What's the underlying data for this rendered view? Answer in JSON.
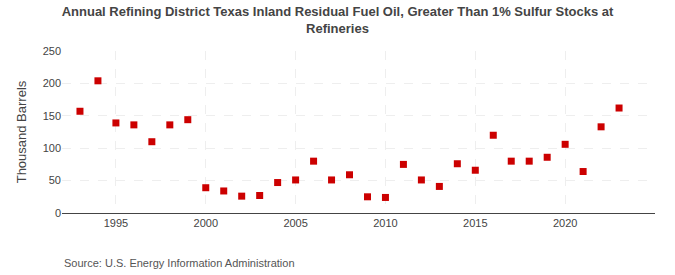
{
  "chart_data": {
    "type": "scatter",
    "title": "Annual Refining District Texas Inland Residual Fuel Oil, Greater Than 1% Sulfur Stocks at\nRefineries",
    "ylabel": "Thousand Barrels",
    "annotations": [
      "Source: U.S. Energy Information Administration"
    ],
    "x": [
      1993,
      1994,
      1995,
      1996,
      1997,
      1998,
      1999,
      2000,
      2001,
      2002,
      2003,
      2004,
      2005,
      2006,
      2007,
      2008,
      2009,
      2010,
      2011,
      2012,
      2013,
      2014,
      2015,
      2016,
      2017,
      2018,
      2019,
      2020,
      2021,
      2022,
      2023
    ],
    "values": [
      157,
      204,
      139,
      136,
      110,
      136,
      144,
      39,
      34,
      26,
      27,
      47,
      51,
      80,
      51,
      59,
      25,
      24,
      75,
      51,
      41,
      76,
      66,
      120,
      80,
      80,
      86,
      106,
      64,
      133,
      162
    ],
    "color": "#cc0000",
    "marker": "square",
    "xlim": [
      1992,
      2025
    ],
    "xticks": [
      1995,
      2000,
      2005,
      2010,
      2015,
      2020
    ],
    "ylim": [
      0,
      250
    ],
    "yticks": [
      0,
      50,
      100,
      150,
      200,
      250
    ],
    "grid": true
  }
}
